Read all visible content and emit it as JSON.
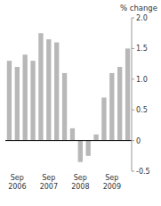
{
  "chart_data": {
    "type": "bar",
    "ylabel": "% change",
    "categories": [
      null,
      "Sep\n2006",
      null,
      null,
      null,
      "Sep\n2007",
      null,
      null,
      null,
      "Sep\n2008",
      null,
      null,
      null,
      "Sep\n2009",
      null,
      null
    ],
    "values": [
      1.3,
      1.2,
      1.4,
      1.3,
      1.75,
      1.65,
      1.6,
      1.1,
      0.2,
      -0.35,
      -0.25,
      0.1,
      0.7,
      1.1,
      1.2,
      1.5
    ],
    "color": "#b8b8b8",
    "ylim": [
      -0.5,
      2.0
    ],
    "yticks": [
      -0.5,
      0,
      0.5,
      {
        "value": 1.0,
        "label": "1.0"
      },
      1.5,
      {
        "value": 2.0,
        "label": "2.0"
      }
    ],
    "grid": false
  }
}
